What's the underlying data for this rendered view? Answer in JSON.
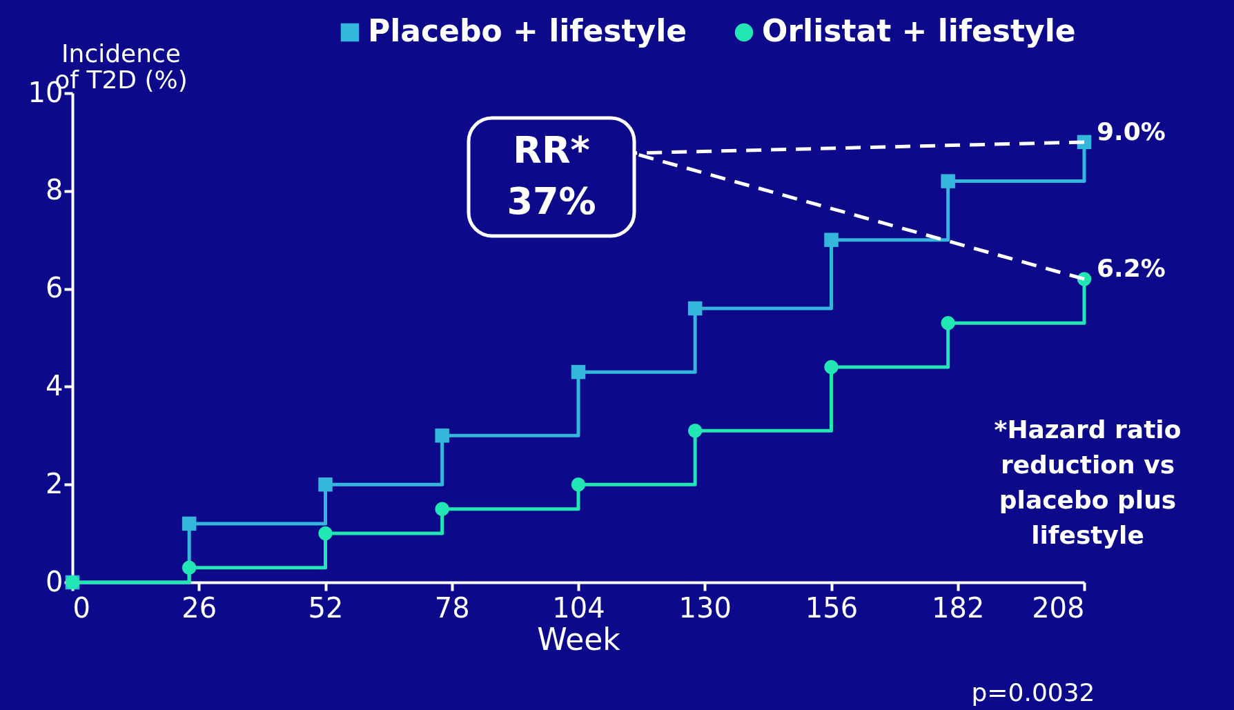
{
  "chart_data": {
    "type": "step",
    "xlabel": "Week",
    "ylabel": "Incidence of T2D (%)",
    "xlim": [
      0,
      208
    ],
    "xticks": [
      0,
      26,
      52,
      78,
      104,
      130,
      156,
      182,
      208
    ],
    "ylim": [
      0,
      10
    ],
    "yticks": [
      0,
      2,
      4,
      6,
      8,
      10
    ],
    "grid": false,
    "legend": "top",
    "series": [
      {
        "name": "Placebo + lifestyle",
        "color": "#35b6dc",
        "marker": "square",
        "x": [
          0,
          24,
          52,
          76,
          104,
          128,
          156,
          180,
          208
        ],
        "values": [
          0,
          1.2,
          2.0,
          3.0,
          4.3,
          5.6,
          7.0,
          8.2,
          9.0
        ],
        "value_labels": [
          null,
          null,
          null,
          null,
          null,
          null,
          null,
          null,
          "9.0%"
        ]
      },
      {
        "name": "Orlistat + lifestyle",
        "color": "#22e6b4",
        "marker": "circle",
        "x": [
          0,
          24,
          52,
          76,
          104,
          128,
          156,
          180,
          208
        ],
        "values": [
          0,
          0.3,
          1.0,
          1.5,
          2.0,
          3.1,
          4.4,
          5.3,
          6.2
        ],
        "value_labels": [
          null,
          null,
          null,
          null,
          null,
          null,
          null,
          null,
          "6.2%"
        ]
      }
    ],
    "annotations": [
      "RR* 37%",
      "*Hazard ratio reduction vs placebo plus lifestyle",
      "p=0.0032"
    ]
  }
}
